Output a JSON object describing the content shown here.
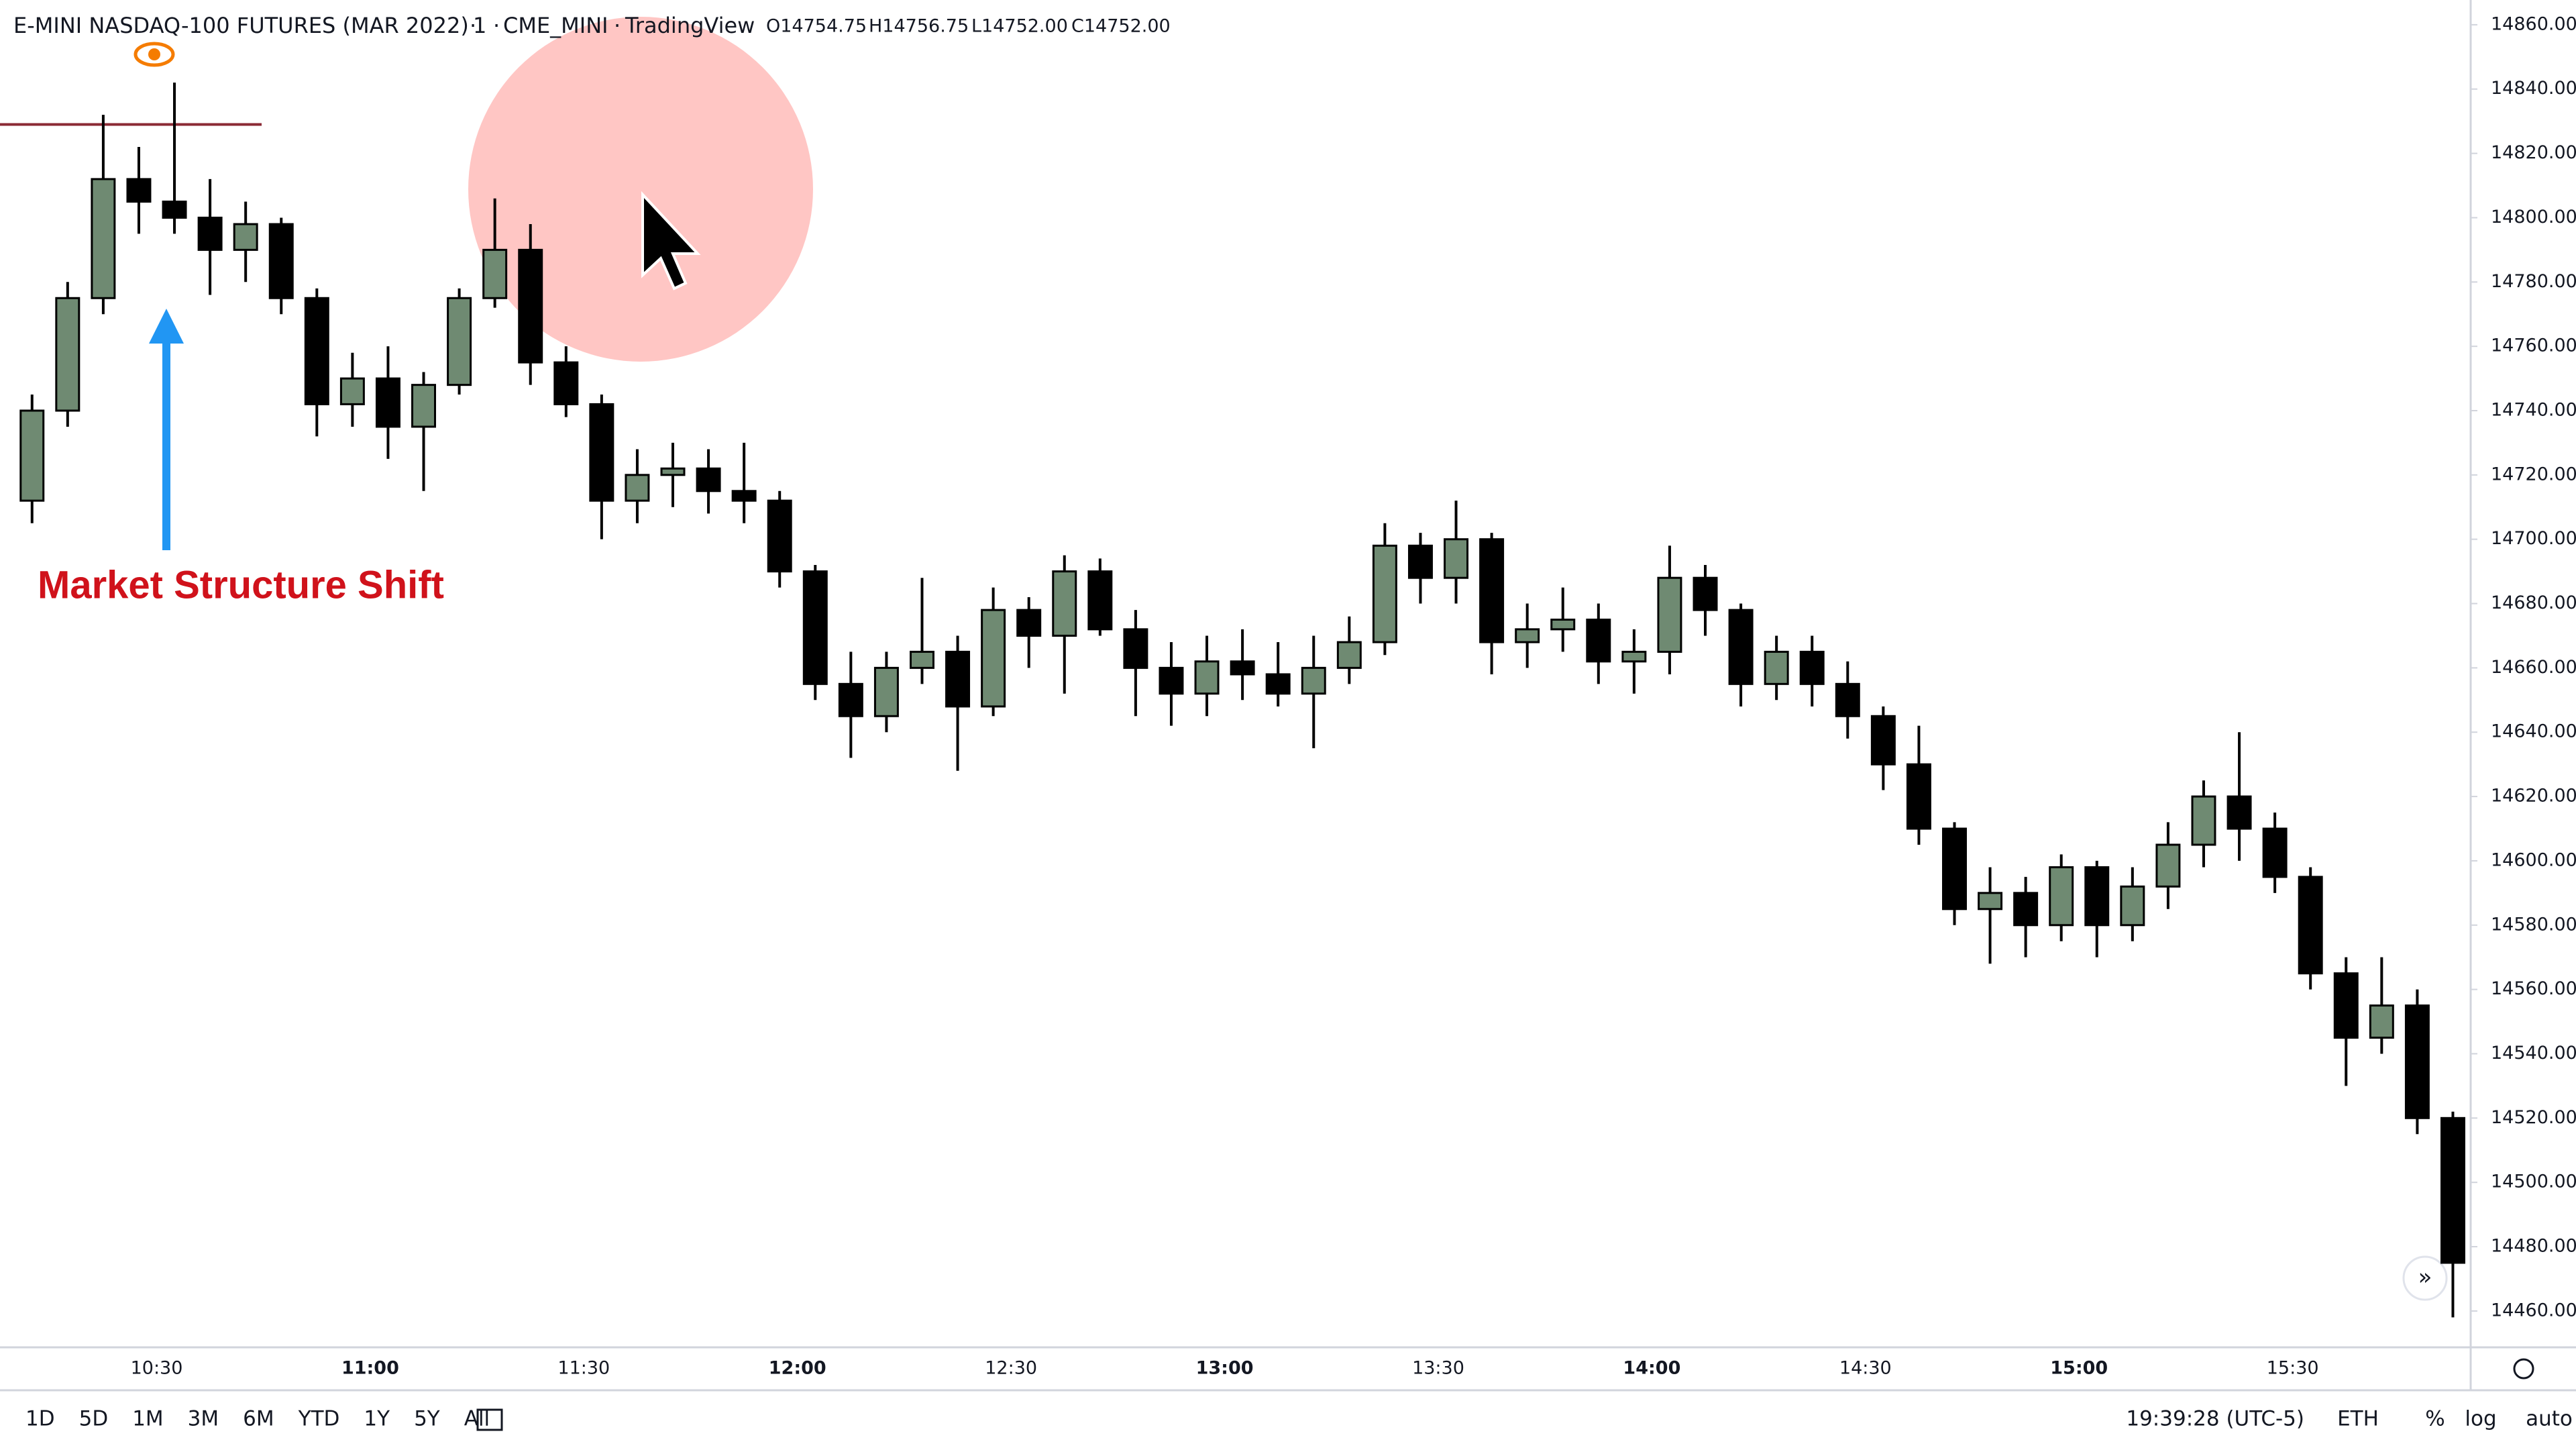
{
  "header": {
    "symbol": "E-MINI NASDAQ-100 FUTURES (MAR 2022)",
    "interval": "1",
    "exchange": "CME_MINI",
    "source": "TradingView",
    "open": "O14754.75",
    "high": "H14756.75",
    "low": "L14752.00",
    "close": "C14752.00"
  },
  "annotation": "Market Structure Shift",
  "toolbar": {
    "ranges": [
      "1D",
      "5D",
      "1M",
      "3M",
      "6M",
      "YTD",
      "1Y",
      "5Y",
      "All"
    ],
    "clock": "19:39:28 (UTC-5)",
    "session": "ETH",
    "percent": "%",
    "log": "log",
    "auto": "auto"
  },
  "chart_data": {
    "type": "candlestick",
    "up_color": "#6f8a72",
    "down_color": "#000000",
    "x": [
      "10:10",
      "10:15",
      "10:20",
      "10:25",
      "10:30",
      "10:35",
      "10:40",
      "10:45",
      "10:50",
      "10:55",
      "11:00",
      "11:05",
      "11:10",
      "11:15",
      "11:20",
      "11:25",
      "11:30",
      "11:35",
      "11:40",
      "11:45",
      "11:50",
      "11:55",
      "12:00",
      "12:05",
      "12:10",
      "12:15",
      "12:20",
      "12:25",
      "12:30",
      "12:35",
      "12:40",
      "12:45",
      "12:50",
      "12:55",
      "13:00",
      "13:05",
      "13:10",
      "13:15",
      "13:20",
      "13:25",
      "13:30",
      "13:35",
      "13:40",
      "13:45",
      "13:50",
      "13:55",
      "14:00",
      "14:05",
      "14:10",
      "14:15",
      "14:20",
      "14:25",
      "14:30",
      "14:35",
      "14:40",
      "14:45",
      "14:50",
      "14:55",
      "15:00",
      "15:05",
      "15:10",
      "15:15",
      "15:20",
      "15:25",
      "15:30",
      "15:35",
      "15:40",
      "15:45",
      "15:50"
    ],
    "open": [
      14712,
      14740,
      14775,
      14812,
      14805,
      14800,
      14790,
      14798,
      14775,
      14742,
      14750,
      14735,
      14748,
      14775,
      14790,
      14755,
      14742,
      14712,
      14720,
      14722,
      14715,
      14712,
      14690,
      14655,
      14645,
      14660,
      14665,
      14648,
      14678,
      14670,
      14690,
      14672,
      14660,
      14652,
      14662,
      14658,
      14652,
      14660,
      14668,
      14698,
      14688,
      14700,
      14668,
      14672,
      14675,
      14662,
      14665,
      14688,
      14678,
      14655,
      14665,
      14655,
      14645,
      14630,
      14610,
      14585,
      14590,
      14580,
      14598,
      14580,
      14592,
      14605,
      14620,
      14610,
      14595,
      14565,
      14545,
      14555,
      14520
    ],
    "high": [
      14745,
      14780,
      14832,
      14822,
      14842,
      14812,
      14805,
      14800,
      14778,
      14758,
      14760,
      14752,
      14778,
      14806,
      14798,
      14760,
      14745,
      14728,
      14730,
      14728,
      14730,
      14715,
      14692,
      14665,
      14665,
      14688,
      14670,
      14685,
      14682,
      14695,
      14694,
      14678,
      14668,
      14670,
      14672,
      14668,
      14670,
      14676,
      14705,
      14702,
      14712,
      14702,
      14680,
      14685,
      14680,
      14672,
      14698,
      14692,
      14680,
      14670,
      14670,
      14662,
      14648,
      14642,
      14612,
      14598,
      14595,
      14602,
      14600,
      14598,
      14612,
      14625,
      14640,
      14615,
      14598,
      14570,
      14570,
      14560,
      14522
    ],
    "low": [
      14705,
      14735,
      14770,
      14795,
      14795,
      14776,
      14780,
      14770,
      14732,
      14735,
      14725,
      14715,
      14745,
      14772,
      14748,
      14738,
      14700,
      14705,
      14710,
      14708,
      14705,
      14685,
      14650,
      14632,
      14640,
      14655,
      14628,
      14645,
      14660,
      14652,
      14670,
      14645,
      14642,
      14645,
      14650,
      14648,
      14635,
      14655,
      14664,
      14680,
      14680,
      14658,
      14660,
      14665,
      14655,
      14652,
      14658,
      14670,
      14648,
      14650,
      14648,
      14638,
      14622,
      14605,
      14580,
      14568,
      14570,
      14575,
      14570,
      14575,
      14585,
      14598,
      14600,
      14590,
      14560,
      14530,
      14540,
      14515,
      14458
    ],
    "close": [
      14740,
      14775,
      14812,
      14805,
      14800,
      14790,
      14798,
      14775,
      14742,
      14750,
      14735,
      14748,
      14775,
      14790,
      14755,
      14742,
      14712,
      14720,
      14722,
      14715,
      14712,
      14690,
      14655,
      14645,
      14660,
      14665,
      14648,
      14678,
      14670,
      14690,
      14672,
      14660,
      14652,
      14662,
      14658,
      14652,
      14660,
      14668,
      14698,
      14688,
      14700,
      14668,
      14672,
      14675,
      14662,
      14665,
      14688,
      14678,
      14655,
      14665,
      14655,
      14645,
      14630,
      14610,
      14585,
      14590,
      14580,
      14598,
      14580,
      14592,
      14605,
      14620,
      14610,
      14595,
      14565,
      14545,
      14555,
      14520,
      14475
    ],
    "level": 14829,
    "level_color": "#8b2a35",
    "xlim": [
      "10:08",
      "15:55"
    ],
    "xticks": [
      "10:30",
      "11:00",
      "11:30",
      "12:00",
      "12:30",
      "13:00",
      "13:30",
      "14:00",
      "14:30",
      "15:00",
      "15:30"
    ],
    "ylim": [
      14448.7,
      14867.7
    ],
    "yticks": [
      {
        "value": 14860,
        "label": "14860.00"
      },
      {
        "value": 14840,
        "label": "14840.00"
      },
      {
        "value": 14820,
        "label": "14820.00"
      },
      {
        "value": 14800,
        "label": "14800.00"
      },
      {
        "value": 14780,
        "label": "14780.00"
      },
      {
        "value": 14760,
        "label": "14760.00"
      },
      {
        "value": 14740,
        "label": "14740.00"
      },
      {
        "value": 14720,
        "label": "14720.00"
      },
      {
        "value": 14700,
        "label": "14700.00"
      },
      {
        "value": 14680,
        "label": "14680.00"
      },
      {
        "value": 14660,
        "label": "14660.00"
      },
      {
        "value": 14640,
        "label": "14640.00"
      },
      {
        "value": 14620,
        "label": "14620.00"
      },
      {
        "value": 14600,
        "label": "14600.00"
      },
      {
        "value": 14580,
        "label": "14580.00"
      },
      {
        "value": 14560,
        "label": "14560.00"
      },
      {
        "value": 14540,
        "label": "14540.00"
      },
      {
        "value": 14520,
        "label": "14520.00"
      },
      {
        "value": 14500,
        "label": "14500.00"
      },
      {
        "value": 14480,
        "label": "14480.00"
      },
      {
        "value": 14460,
        "label": "14460.00"
      }
    ],
    "grid": false
  }
}
